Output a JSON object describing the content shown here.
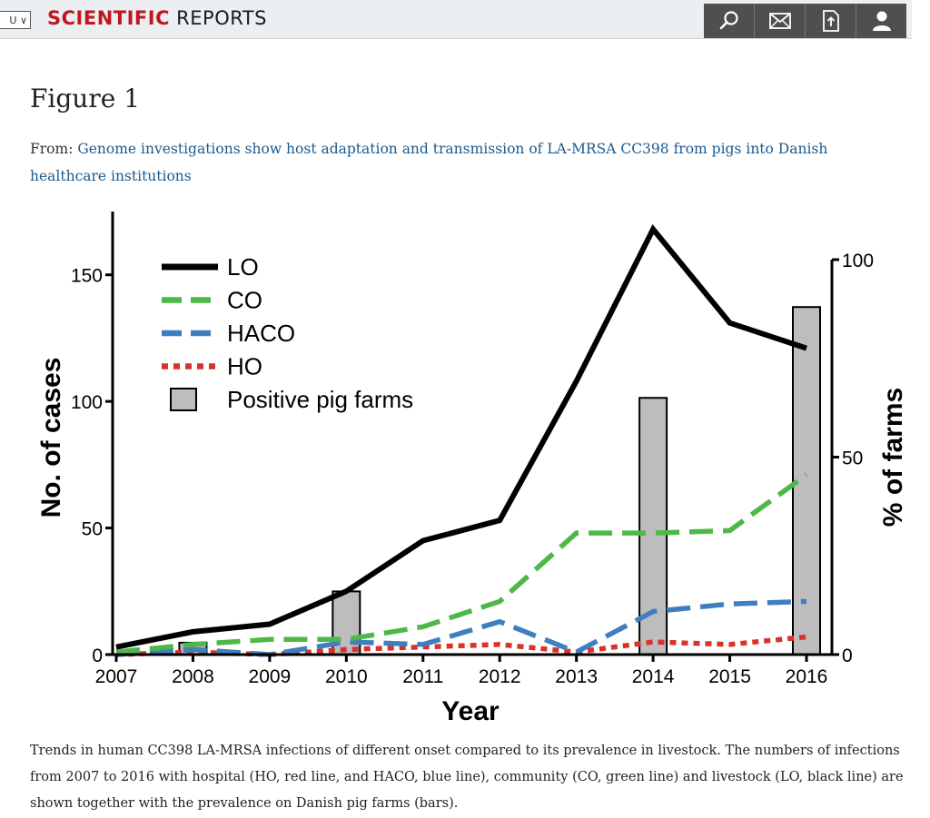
{
  "header": {
    "menu_label": "U ∨",
    "brand_primary": "SCIENTIFIC",
    "brand_secondary": "REPORTS",
    "tools": [
      "search-icon",
      "mail-icon",
      "download-icon",
      "user-icon"
    ]
  },
  "figure": {
    "title": "Figure 1",
    "from_label": "From:",
    "article_title": "Genome investigations show host adaptation and transmission of LA-MRSA CC398 from pigs into Danish healthcare institutions",
    "caption": "Trends in human CC398 LA-MRSA infections of different onset compared to its prevalence in livestock. The numbers of infections from 2007 to 2016 with hospital (HO, red line, and HACO, blue line), community (CO, green line) and livestock (LO, black line) are shown together with the prevalence on Danish pig farms (bars)."
  },
  "chart_data": {
    "type": "line",
    "xlabel": "Year",
    "ylabel": "No. of cases",
    "y2label": "% of farms",
    "x": [
      "2007",
      "2008",
      "2009",
      "2010",
      "2011",
      "2012",
      "2013",
      "2014",
      "2015",
      "2016"
    ],
    "ylim": [
      0,
      175
    ],
    "yticks": [
      "0",
      "50",
      "100",
      "150"
    ],
    "y2lim": [
      0,
      100
    ],
    "y2ticks": [
      "0",
      "50",
      "100"
    ],
    "legend_position": "top-left",
    "grid": false,
    "series": [
      {
        "name": "LO",
        "style": "solid",
        "color": "#000000",
        "values": [
          3,
          9,
          12,
          25,
          45,
          53,
          108,
          168,
          131,
          121
        ]
      },
      {
        "name": "CO",
        "style": "dashed",
        "color": "#4db847",
        "values": [
          1,
          4,
          6,
          6,
          11,
          21,
          48,
          48,
          49,
          71
        ]
      },
      {
        "name": "HACO",
        "style": "dashed",
        "color": "#3f7fbf",
        "values": [
          0,
          2,
          0,
          5,
          4,
          13,
          1,
          17,
          20,
          21
        ]
      },
      {
        "name": "HO",
        "style": "dotted",
        "color": "#d9322b",
        "values": [
          0,
          1,
          0,
          2,
          3,
          4,
          1,
          5,
          4,
          7
        ]
      }
    ],
    "bars": {
      "name": "Positive pig farms",
      "color": "#bdbdbd",
      "axis": "right",
      "x": [
        "2008",
        "2010",
        "2014",
        "2016"
      ],
      "values": [
        3,
        16,
        65,
        88
      ]
    }
  }
}
